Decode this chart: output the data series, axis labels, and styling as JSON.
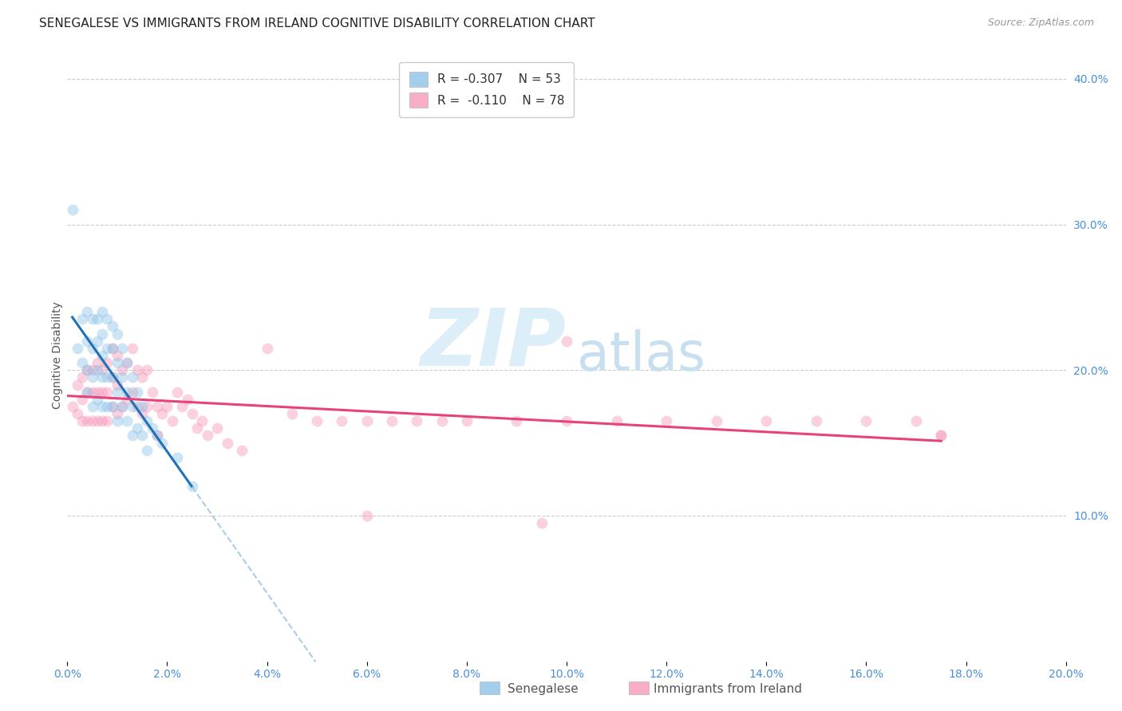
{
  "title": "SENEGALESE VS IMMIGRANTS FROM IRELAND COGNITIVE DISABILITY CORRELATION CHART",
  "source": "Source: ZipAtlas.com",
  "ylabel": "Cognitive Disability",
  "xlim": [
    0.0,
    0.2
  ],
  "ylim": [
    0.0,
    0.42
  ],
  "yticks_right": [
    0.1,
    0.2,
    0.3,
    0.4
  ],
  "ytick_right_labels": [
    "10.0%",
    "20.0%",
    "30.0%",
    "40.0%"
  ],
  "xtick_vals": [
    0.0,
    0.02,
    0.04,
    0.06,
    0.08,
    0.1,
    0.12,
    0.14,
    0.16,
    0.18,
    0.2
  ],
  "xtick_labels": [
    "0.0%",
    "2.0%",
    "4.0%",
    "6.0%",
    "8.0%",
    "10.0%",
    "12.0%",
    "14.0%",
    "16.0%",
    "18.0%",
    "20.0%"
  ],
  "blue_color": "#8ec4e8",
  "pink_color": "#f799bc",
  "blue_line_color": "#2171b5",
  "pink_line_color": "#e8427a",
  "blue_dash_color": "#a8cde8",
  "legend_blue_label": "Senegalese",
  "legend_pink_label": "Immigrants from Ireland",
  "R_blue": "-0.307",
  "N_blue": "53",
  "R_pink": "-0.110",
  "N_pink": "78",
  "watermark_zip": "ZIP",
  "watermark_atlas": "atlas",
  "background_color": "#ffffff",
  "title_fontsize": 11,
  "axis_label_fontsize": 10,
  "tick_fontsize": 10,
  "legend_fontsize": 11,
  "source_fontsize": 9,
  "marker_size": 100,
  "marker_alpha": 0.45,
  "senegalese_x": [
    0.001,
    0.002,
    0.003,
    0.003,
    0.004,
    0.004,
    0.004,
    0.004,
    0.005,
    0.005,
    0.005,
    0.005,
    0.006,
    0.006,
    0.006,
    0.006,
    0.007,
    0.007,
    0.007,
    0.007,
    0.007,
    0.008,
    0.008,
    0.008,
    0.008,
    0.009,
    0.009,
    0.009,
    0.009,
    0.01,
    0.01,
    0.01,
    0.01,
    0.011,
    0.011,
    0.011,
    0.012,
    0.012,
    0.012,
    0.013,
    0.013,
    0.013,
    0.014,
    0.014,
    0.015,
    0.015,
    0.016,
    0.016,
    0.017,
    0.018,
    0.019,
    0.022,
    0.025
  ],
  "senegalese_y": [
    0.31,
    0.215,
    0.235,
    0.205,
    0.24,
    0.22,
    0.2,
    0.185,
    0.235,
    0.215,
    0.195,
    0.175,
    0.235,
    0.22,
    0.2,
    0.18,
    0.24,
    0.225,
    0.21,
    0.195,
    0.175,
    0.235,
    0.215,
    0.195,
    0.175,
    0.23,
    0.215,
    0.195,
    0.175,
    0.225,
    0.205,
    0.185,
    0.165,
    0.215,
    0.195,
    0.175,
    0.205,
    0.185,
    0.165,
    0.195,
    0.175,
    0.155,
    0.185,
    0.16,
    0.175,
    0.155,
    0.165,
    0.145,
    0.16,
    0.155,
    0.15,
    0.14,
    0.12
  ],
  "ireland_x": [
    0.001,
    0.002,
    0.002,
    0.003,
    0.003,
    0.003,
    0.004,
    0.004,
    0.004,
    0.005,
    0.005,
    0.005,
    0.006,
    0.006,
    0.006,
    0.007,
    0.007,
    0.007,
    0.008,
    0.008,
    0.008,
    0.009,
    0.009,
    0.009,
    0.01,
    0.01,
    0.01,
    0.011,
    0.011,
    0.012,
    0.012,
    0.013,
    0.013,
    0.014,
    0.014,
    0.015,
    0.015,
    0.016,
    0.016,
    0.017,
    0.018,
    0.018,
    0.019,
    0.02,
    0.021,
    0.022,
    0.023,
    0.024,
    0.025,
    0.026,
    0.027,
    0.028,
    0.03,
    0.032,
    0.035,
    0.04,
    0.045,
    0.05,
    0.055,
    0.06,
    0.065,
    0.07,
    0.075,
    0.08,
    0.09,
    0.1,
    0.11,
    0.12,
    0.13,
    0.14,
    0.15,
    0.16,
    0.17,
    0.175,
    0.06,
    0.095,
    0.1,
    0.175
  ],
  "ireland_y": [
    0.175,
    0.19,
    0.17,
    0.195,
    0.18,
    0.165,
    0.2,
    0.185,
    0.165,
    0.2,
    0.185,
    0.165,
    0.205,
    0.185,
    0.165,
    0.2,
    0.185,
    0.165,
    0.205,
    0.185,
    0.165,
    0.215,
    0.195,
    0.175,
    0.21,
    0.19,
    0.17,
    0.2,
    0.175,
    0.205,
    0.18,
    0.215,
    0.185,
    0.2,
    0.175,
    0.195,
    0.17,
    0.2,
    0.175,
    0.185,
    0.175,
    0.155,
    0.17,
    0.175,
    0.165,
    0.185,
    0.175,
    0.18,
    0.17,
    0.16,
    0.165,
    0.155,
    0.16,
    0.15,
    0.145,
    0.215,
    0.17,
    0.165,
    0.165,
    0.165,
    0.165,
    0.165,
    0.165,
    0.165,
    0.165,
    0.165,
    0.165,
    0.165,
    0.165,
    0.165,
    0.165,
    0.165,
    0.165,
    0.155,
    0.1,
    0.095,
    0.22,
    0.155
  ]
}
